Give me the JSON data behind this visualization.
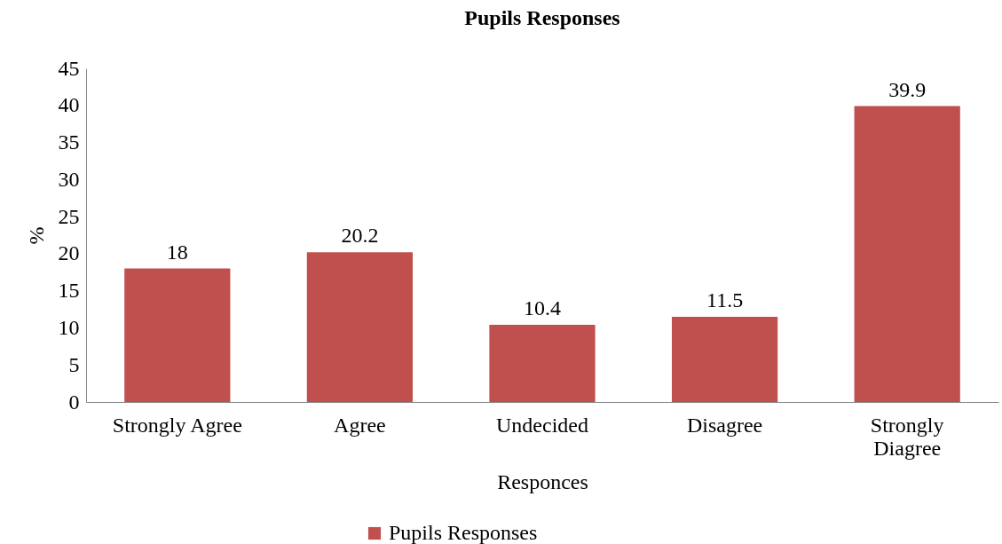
{
  "chart_data": {
    "type": "bar",
    "title": "Pupils Responses",
    "xlabel": "Responces",
    "ylabel": "%",
    "categories": [
      "Strongly Agree",
      "Agree",
      "Undecided",
      "Disagree",
      "Strongly Diagree"
    ],
    "series": [
      {
        "name": "Pupils Responses",
        "color": "#c0504d",
        "values": [
          18,
          20.2,
          10.4,
          11.5,
          39.9
        ]
      }
    ],
    "ylim": [
      0,
      45
    ],
    "yticks": [
      0,
      5,
      10,
      15,
      20,
      25,
      30,
      35,
      40,
      45
    ],
    "grid": false,
    "legend": "bottom",
    "data_labels": true
  }
}
